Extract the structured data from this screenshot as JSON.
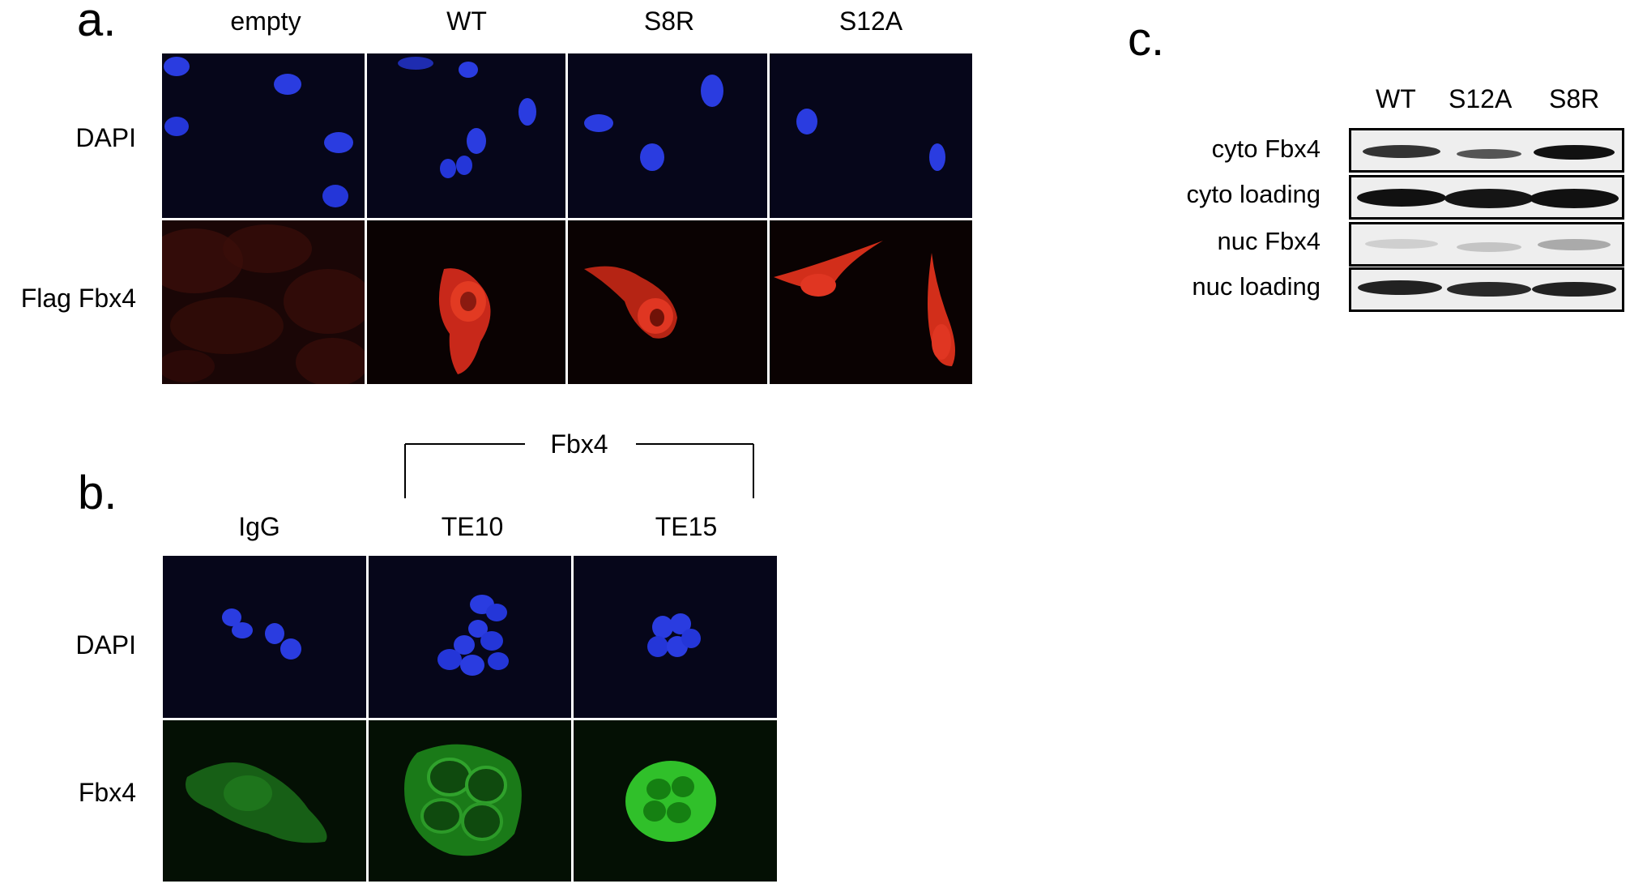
{
  "panel_a": {
    "letter": "a.",
    "columns": [
      "empty",
      "WT",
      "S8R",
      "S12A"
    ],
    "rows": [
      "DAPI",
      "Flag Fbx4"
    ]
  },
  "panel_b": {
    "letter": "b.",
    "bracket_label": "Fbx4",
    "columns": [
      "IgG",
      "TE10",
      "TE15"
    ],
    "rows": [
      "DAPI",
      "Fbx4"
    ]
  },
  "panel_c": {
    "letter": "c.",
    "columns": [
      "WT",
      "S12A",
      "S8R"
    ],
    "rows": [
      "cyto Fbx4",
      "cyto loading",
      "nuc Fbx4",
      "nuc loading"
    ]
  },
  "colors": {
    "dapi": "#1f2ed8",
    "flag": "#e0301c",
    "gfp": "#22c81e",
    "cell_bg": "#050510"
  }
}
